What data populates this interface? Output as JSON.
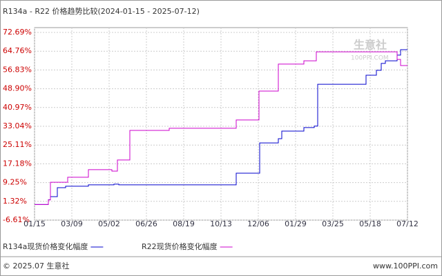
{
  "chart_data": {
    "type": "line",
    "title": "R134a - R22 价格趋势比较(2024-01-15 - 2025-07-12)",
    "watermark": "生意社",
    "watermark_sub": "100PPI.COM",
    "footer_left": "© 2025.07 生意社",
    "footer_right": "www.100PPI.com",
    "xlim": [
      0,
      540
    ],
    "xticks": [
      {
        "value": 0,
        "label": "01/15"
      },
      {
        "value": 54,
        "label": "03/09"
      },
      {
        "value": 108,
        "label": "05/02"
      },
      {
        "value": 162,
        "label": "06/26"
      },
      {
        "value": 216,
        "label": "08/19"
      },
      {
        "value": 270,
        "label": "10/13"
      },
      {
        "value": 324,
        "label": "12/06"
      },
      {
        "value": 378,
        "label": "01/29"
      },
      {
        "value": 432,
        "label": "03/25"
      },
      {
        "value": 486,
        "label": "05/18"
      },
      {
        "value": 540,
        "label": "07/12"
      }
    ],
    "ylim": [
      -6.61,
      72.69
    ],
    "yticks": [
      {
        "value": 72.69,
        "label": "72.69%"
      },
      {
        "value": 64.76,
        "label": "64.76%"
      },
      {
        "value": 56.83,
        "label": "56.83%"
      },
      {
        "value": 48.9,
        "label": "48.90%"
      },
      {
        "value": 40.97,
        "label": "40.97%"
      },
      {
        "value": 33.04,
        "label": "33.04%"
      },
      {
        "value": 25.11,
        "label": "25.11%"
      },
      {
        "value": 17.18,
        "label": "17.18%"
      },
      {
        "value": 9.25,
        "label": "9.25%"
      },
      {
        "value": 1.32,
        "label": "1.32%"
      },
      {
        "value": -6.61,
        "label": "-6.61%"
      }
    ],
    "grid": true,
    "series": [
      {
        "name": "R134a现货价格变化幅度",
        "color": "#0000cc",
        "x": [
          0,
          20,
          20,
          23,
          23,
          33,
          33,
          45,
          45,
          78,
          78,
          115,
          115,
          122,
          122,
          292,
          292,
          326,
          326,
          353,
          353,
          358,
          358,
          390,
          390,
          405,
          405,
          410,
          410,
          480,
          480,
          495,
          495,
          502,
          502,
          508,
          508,
          525,
          525,
          530,
          530,
          540
        ],
        "values": [
          0,
          0,
          2.0,
          2.0,
          3.3,
          3.3,
          7.1,
          7.1,
          7.7,
          7.7,
          8.3,
          8.3,
          8.6,
          8.6,
          8.3,
          8.3,
          13.2,
          13.2,
          26.0,
          26.0,
          27.8,
          27.8,
          31.0,
          31.0,
          32.5,
          32.5,
          33.1,
          33.1,
          50.8,
          50.8,
          54.6,
          54.6,
          56.7,
          56.7,
          59.6,
          59.6,
          60.7,
          60.7,
          63.1,
          63.1,
          65.4,
          65.4
        ]
      },
      {
        "name": "R22现货价格变化幅度",
        "color": "#cc00cc",
        "x": [
          0,
          20,
          20,
          23,
          23,
          48,
          48,
          78,
          78,
          112,
          112,
          120,
          120,
          138,
          138,
          195,
          195,
          292,
          292,
          325,
          325,
          353,
          353,
          390,
          390,
          408,
          408,
          525,
          525,
          530,
          530,
          540
        ],
        "values": [
          0,
          0,
          1.9,
          1.9,
          9.4,
          9.4,
          11.5,
          11.5,
          14.7,
          14.7,
          14.1,
          14.1,
          18.8,
          18.8,
          31.3,
          31.3,
          32.2,
          32.2,
          35.7,
          35.7,
          47.9,
          47.9,
          59.3,
          59.3,
          60.7,
          60.7,
          64.5,
          64.5,
          61.3,
          61.3,
          58.7,
          58.7
        ]
      }
    ]
  }
}
